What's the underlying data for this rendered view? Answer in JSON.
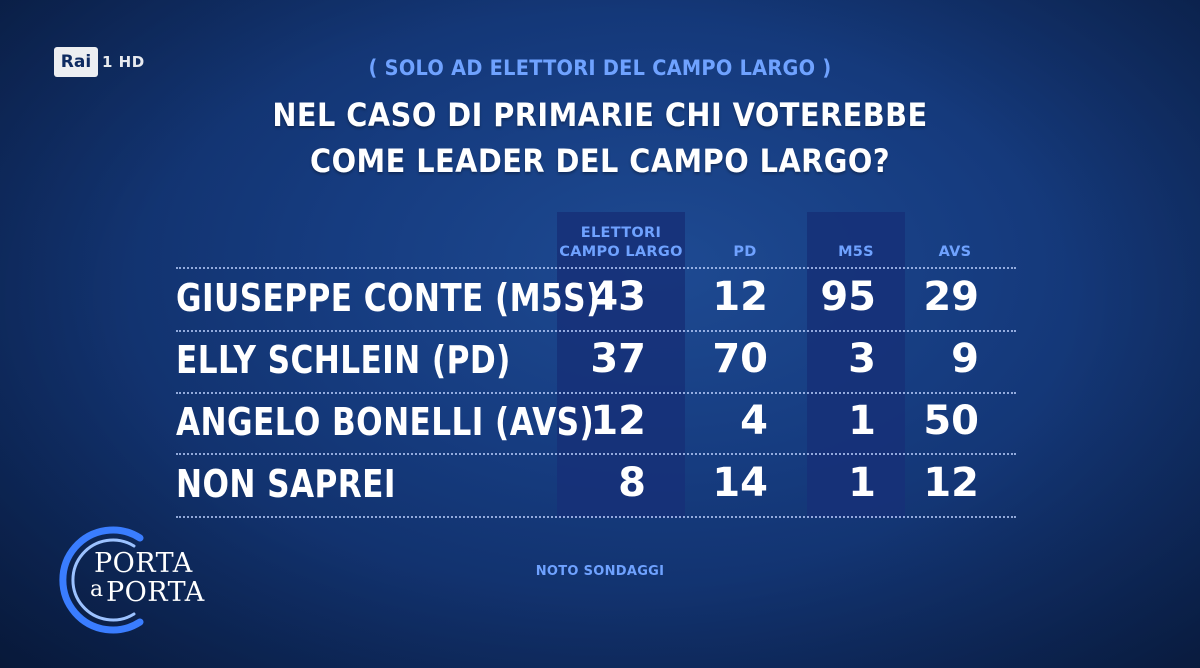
{
  "broadcaster": {
    "logo_text": "Rai",
    "channel": "1 HD"
  },
  "subtitle": "( SOLO AD ELETTORI DEL CAMPO LARGO )",
  "title_line1": "NEL CASO DI PRIMARIE CHI VOTEREBBE",
  "title_line2": "COME LEADER DEL CAMPO LARGO?",
  "chart_data": {
    "type": "table",
    "title": "NEL CASO DI PRIMARIE CHI VOTEREBBE COME LEADER DEL CAMPO LARGO?",
    "subtitle": "( SOLO AD ELETTORI DEL CAMPO LARGO )",
    "columns": [
      {
        "line1": "ELETTORI",
        "line2": "CAMPO LARGO",
        "highlight": true
      },
      {
        "line1": "",
        "line2": "PD",
        "highlight": false
      },
      {
        "line1": "",
        "line2": "M5S",
        "highlight": true
      },
      {
        "line1": "",
        "line2": "AVS",
        "highlight": false
      }
    ],
    "rows": [
      {
        "label": "GIUSEPPE CONTE (M5S)",
        "values": [
          43,
          12,
          95,
          29
        ]
      },
      {
        "label": "ELLY SCHLEIN (PD)",
        "values": [
          37,
          70,
          3,
          9
        ]
      },
      {
        "label": "ANGELO BONELLI (AVS)",
        "values": [
          12,
          4,
          1,
          50
        ]
      },
      {
        "label": "NON SAPREI",
        "values": [
          8,
          14,
          1,
          12
        ]
      }
    ]
  },
  "source": "NOTO SONDAGGI",
  "program_logo": {
    "line1": "PORTA",
    "line2": "a",
    "line3": "PORTA"
  },
  "colors": {
    "accent": "#6fa2ff",
    "background": "#163c80",
    "highlight_column": "#163078"
  }
}
